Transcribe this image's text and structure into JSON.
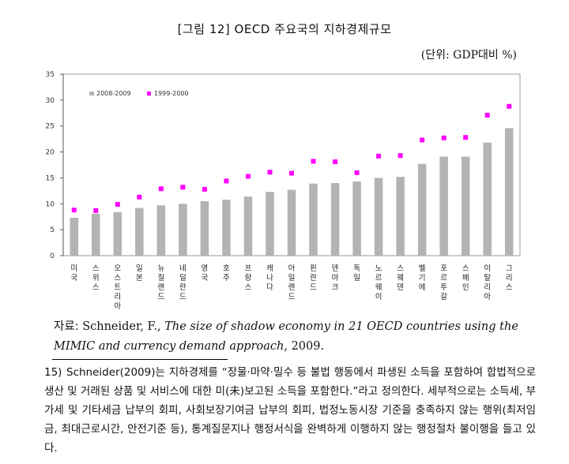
{
  "figure": {
    "title": "[그림 12] OECD 주요국의 지하경제규모",
    "unit": "(단위: GDP대비 %)"
  },
  "chart_data": {
    "type": "bar",
    "categories": [
      "미국",
      "스위스",
      "오스트리아",
      "일본",
      "뉴질랜드",
      "네덜란드",
      "영국",
      "호주",
      "프랑스",
      "캐나다",
      "아일랜드",
      "핀란드",
      "덴마크",
      "독일",
      "노르웨이",
      "스웨덴",
      "벨기에",
      "포르투갈",
      "스페인",
      "이탈리아",
      "그리스"
    ],
    "series": [
      {
        "name": "2008-2009",
        "type": "bar",
        "color": "#b3b3b3",
        "values": [
          7.3,
          8.1,
          8.4,
          9.2,
          9.7,
          10.0,
          10.5,
          10.8,
          11.4,
          12.3,
          12.7,
          13.9,
          14.0,
          14.3,
          15.0,
          15.2,
          17.7,
          19.1,
          19.1,
          21.8,
          24.6
        ]
      },
      {
        "name": "1999-2000",
        "type": "scatter",
        "color": "#ff00ff",
        "values": [
          8.8,
          8.7,
          9.9,
          11.3,
          12.9,
          13.2,
          12.8,
          14.4,
          15.3,
          16.1,
          15.9,
          18.2,
          18.1,
          16.0,
          19.2,
          19.3,
          22.3,
          22.7,
          22.8,
          27.1,
          28.8
        ]
      }
    ],
    "ylim": [
      0,
      35
    ],
    "yticks": [
      "0",
      "5",
      "10",
      "15",
      "20",
      "25",
      "30",
      "35"
    ],
    "legend": "top-left",
    "grid": false
  },
  "source": {
    "label": "자료:",
    "author": "Schneider, F., ",
    "title_italic": "The size of shadow economy in 21 OECD countries using the MIMIC and currency demand approach",
    "year": ", 2009."
  },
  "footnote": {
    "number": "15)",
    "text": "Schneider(2009)는 지하경제를 “장물·마약·밀수 등 불법 행동에서 파생된 소득을 포함하여 합법적으로 생산 및 거래된 상품 및 서비스에 대한 미(未)보고된 소득을 포함한다.”라고 정의한다. 세부적으로는 소득세, 부가세 및 기타세금 납부의 회피, 사회보장기여금 납부의 회피, 법정노동시장 기준을 충족하지 않는 행위(최저임금, 최대근로시간, 안전기준 등), 통계질문지나 행정서식을 완벽하게 이행하지 않는 행정절차 불이행을 들고 있다."
  }
}
